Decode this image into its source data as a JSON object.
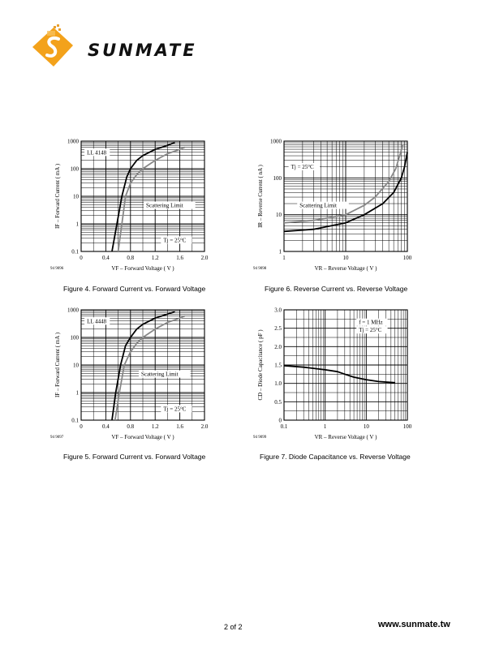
{
  "header": {
    "logo_text": "SUNMATE",
    "logo_name": "sunmate-logo"
  },
  "footer": {
    "page_number": "2 of 2",
    "website": "www.sunmate.tw"
  },
  "captions": {
    "fig4": "Figure 4.  Forward Current vs. Forward Voltage",
    "fig5": "Figure 5.  Forward Current vs. Forward Voltage",
    "fig6": "Figure 6.  Reverse Current vs. Reverse Voltage",
    "fig7": "Figure 7.  Diode Capacitance vs. Reverse Voltage"
  },
  "chart_data": [
    {
      "id": "fig4",
      "type": "line",
      "code": "94 9096",
      "xlabel": "VF – Forward Voltage ( V )",
      "ylabel": "IF – Forward Current ( mA )",
      "xscale": "linear",
      "yscale": "log",
      "xlim": [
        0,
        2.0
      ],
      "ylim": [
        0.1,
        1000
      ],
      "xticks": [
        "0",
        "0.4",
        "0.8",
        "1.2",
        "1.6",
        "2.0"
      ],
      "yticks": [
        "0.1",
        "1",
        "10",
        "100",
        "1000"
      ],
      "annotations": [
        "LL 4148",
        "Scattering Limit",
        "Tj = 25°C"
      ],
      "series": [
        {
          "color": "#000000",
          "x": [
            0.5,
            0.58,
            0.66,
            0.74,
            0.8,
            0.9,
            1.0,
            1.2,
            1.4,
            1.52
          ],
          "y": [
            0.1,
            1,
            10,
            50,
            100,
            200,
            300,
            500,
            700,
            900
          ]
        },
        {
          "color": "#888888",
          "x": [
            0.6,
            0.66,
            0.72,
            0.8,
            0.9,
            1.0,
            1.2,
            1.4,
            1.6,
            1.68
          ],
          "y": [
            0.1,
            1,
            10,
            30,
            60,
            100,
            200,
            350,
            500,
            600
          ]
        }
      ]
    },
    {
      "id": "fig5",
      "type": "line",
      "code": "94 9097",
      "xlabel": "VF – Forward Voltage ( V )",
      "ylabel": "IF – Forward Current ( mA )",
      "xscale": "linear",
      "yscale": "log",
      "xlim": [
        0,
        2.0
      ],
      "ylim": [
        0.1,
        1000
      ],
      "xticks": [
        "0",
        "0.4",
        "0.8",
        "1.2",
        "1.6",
        "2.0"
      ],
      "yticks": [
        "0.1",
        "1",
        "10",
        "100",
        "1000"
      ],
      "annotations": [
        "LL 4448",
        "Scattering Limit",
        "Tj = 25°C"
      ],
      "series": [
        {
          "color": "#000000",
          "x": [
            0.5,
            0.56,
            0.64,
            0.72,
            0.8,
            0.9,
            1.0,
            1.2,
            1.4,
            1.52
          ],
          "y": [
            0.1,
            1,
            10,
            50,
            100,
            200,
            300,
            500,
            700,
            850
          ]
        },
        {
          "color": "#888888",
          "x": [
            0.55,
            0.62,
            0.7,
            0.8,
            0.9,
            1.0,
            1.2,
            1.4,
            1.6,
            1.68
          ],
          "y": [
            0.1,
            1,
            10,
            30,
            60,
            100,
            200,
            350,
            500,
            600
          ]
        }
      ]
    },
    {
      "id": "fig6",
      "type": "line",
      "code": "94 9098",
      "xlabel": "VR – Reverse Voltage ( V )",
      "ylabel": "IR – Reverse Current ( nA )",
      "xscale": "log",
      "yscale": "log",
      "xlim": [
        1,
        100
      ],
      "ylim": [
        1,
        1000
      ],
      "xticks": [
        "1",
        "10",
        "100"
      ],
      "yticks": [
        "1",
        "10",
        "100",
        "1000"
      ],
      "annotations": [
        "Tj = 25°C",
        "Scattering Limit"
      ],
      "series": [
        {
          "color": "#000000",
          "x": [
            1,
            3,
            10,
            20,
            40,
            60,
            80,
            90,
            100
          ],
          "y": [
            3.5,
            4,
            6,
            10,
            20,
            40,
            100,
            200,
            500
          ]
        },
        {
          "color": "#888888",
          "x": [
            1,
            3,
            10,
            20,
            30,
            50,
            65,
            75,
            85
          ],
          "y": [
            6,
            7,
            10,
            18,
            30,
            80,
            180,
            400,
            800
          ]
        }
      ]
    },
    {
      "id": "fig7",
      "type": "line",
      "code": "94 9099",
      "xlabel": "VR – Reverse Voltage ( V )",
      "ylabel": "CD – Diode Capacitance ( pF )",
      "xscale": "log",
      "yscale": "linear",
      "xlim": [
        0.1,
        100
      ],
      "ylim": [
        0,
        3.0
      ],
      "xticks": [
        "0.1",
        "1",
        "10",
        "100"
      ],
      "yticks": [
        "0",
        "0.5",
        "1.0",
        "1.5",
        "2.0",
        "2.5",
        "3.0"
      ],
      "annotations": [
        "f = 1 MHz",
        "Tj = 25°C"
      ],
      "series": [
        {
          "color": "#000000",
          "x": [
            0.1,
            0.3,
            1,
            2,
            3,
            5,
            10,
            20,
            50
          ],
          "y": [
            1.48,
            1.44,
            1.37,
            1.32,
            1.25,
            1.17,
            1.1,
            1.05,
            1.02
          ]
        }
      ]
    }
  ]
}
